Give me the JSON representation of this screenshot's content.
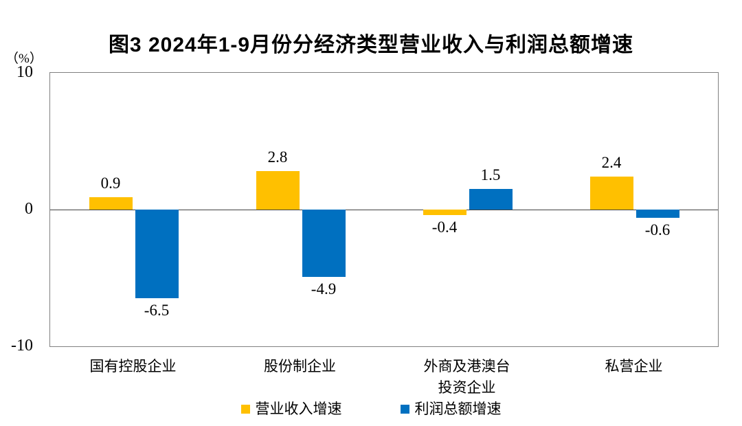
{
  "page": {
    "background": "#ffffff"
  },
  "chart_data": {
    "type": "bar",
    "title": "图3 2024年1-9月份分经济类型营业收入与利润总额增速",
    "y_unit_label": "（%）",
    "categories": [
      "国有控股企业",
      "股份制企业",
      "外商及港澳台\n投资企业",
      "私营企业"
    ],
    "series": [
      {
        "name": "营业收入增速",
        "color": "#FFC000",
        "values": [
          0.9,
          2.8,
          -0.4,
          2.4
        ]
      },
      {
        "name": "利润总额增速",
        "color": "#0070C0",
        "values": [
          -6.5,
          -4.9,
          1.5,
          -0.6
        ]
      }
    ],
    "ylim": [
      -10,
      10
    ],
    "yticks": [
      10,
      0,
      -10
    ],
    "grid": "zero-line-only",
    "legend_position": "bottom",
    "value_label_decimals": 1,
    "axis_line_color": "#808080",
    "zero_line_color": "#404040"
  }
}
